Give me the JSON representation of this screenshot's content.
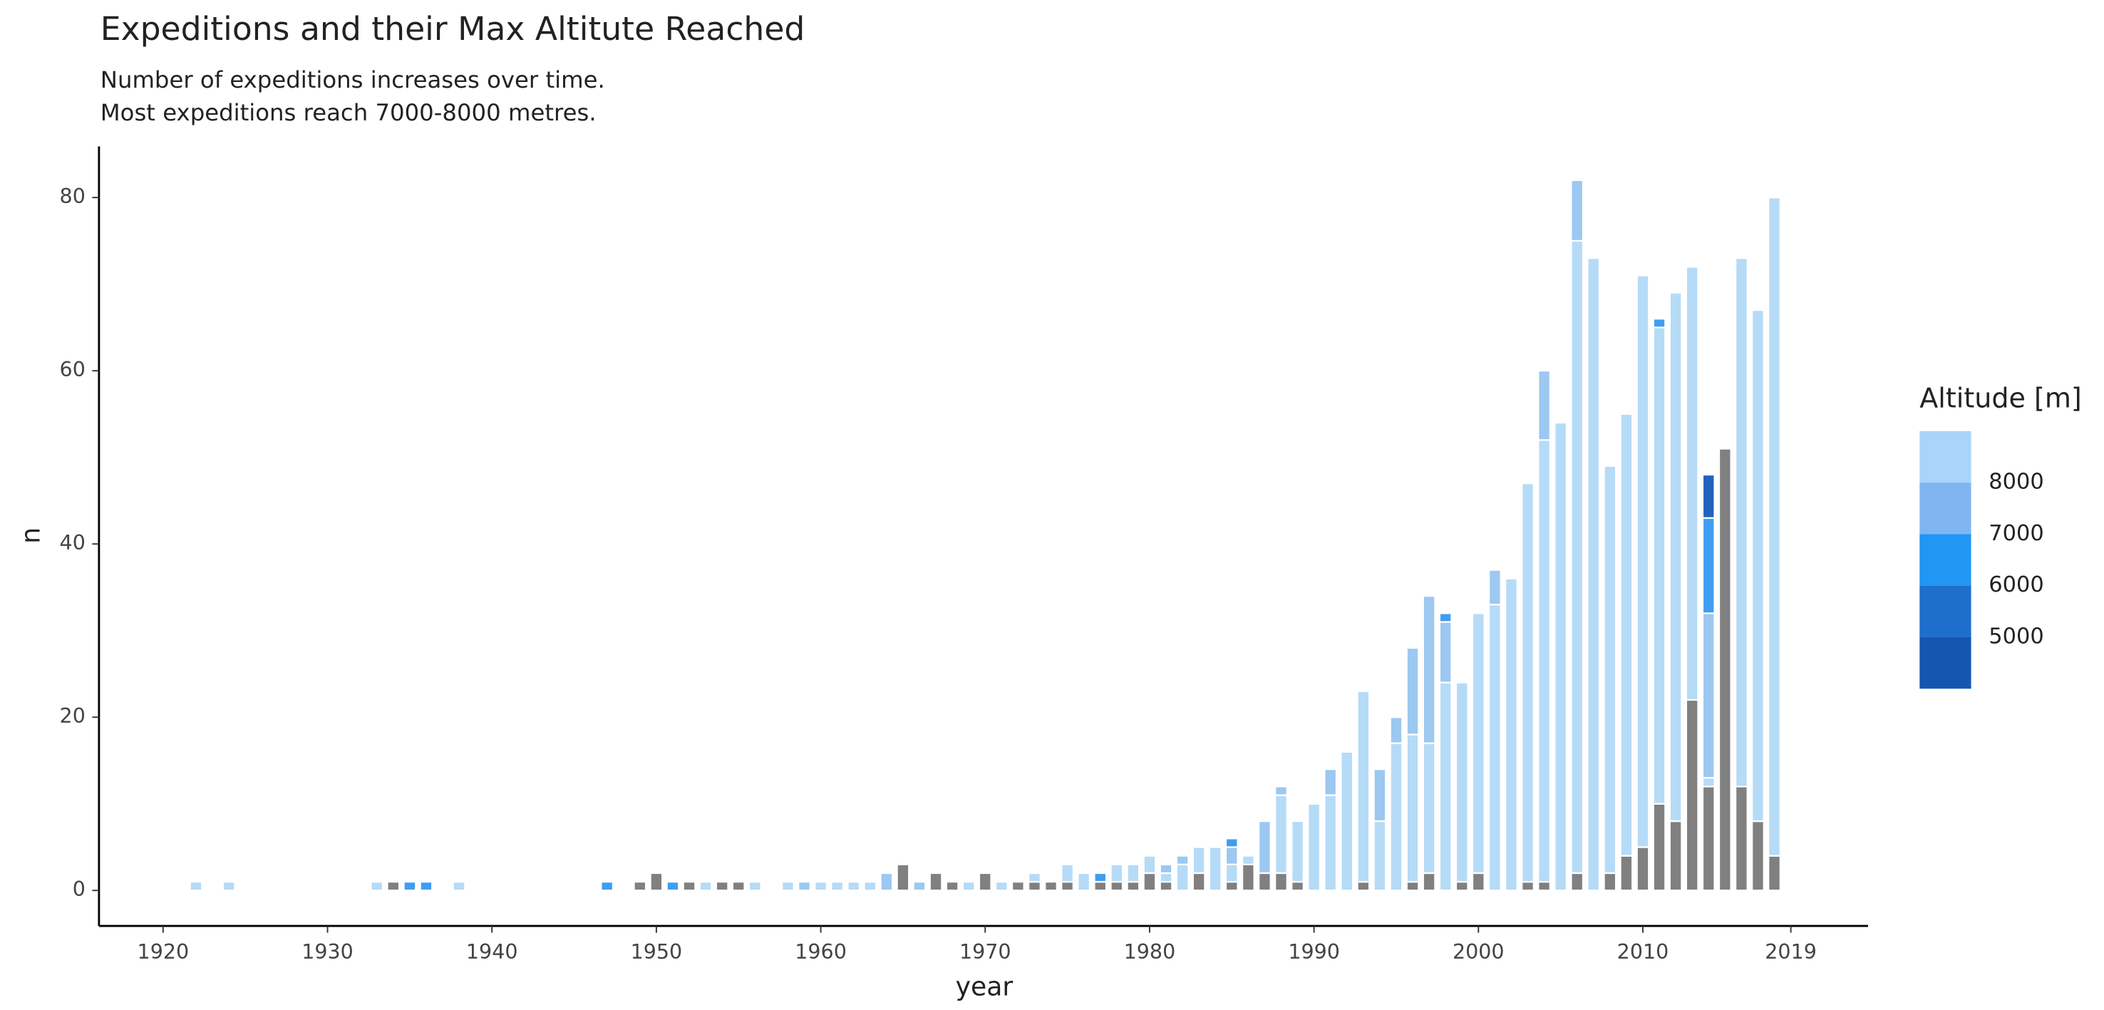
{
  "chart_data": {
    "type": "stacked_bar",
    "title": "Expeditions and their Max Altitute Reached",
    "subtitle": [
      "Number of expeditions increases over time.",
      "Most expeditions reach 7000-8000 metres."
    ],
    "x_label": "year",
    "y_label": "n",
    "x": [
      1922,
      1924,
      1933,
      1934,
      1935,
      1936,
      1938,
      1947,
      1949,
      1950,
      1951,
      1952,
      1953,
      1954,
      1955,
      1956,
      1958,
      1959,
      1960,
      1961,
      1962,
      1963,
      1964,
      1965,
      1966,
      1967,
      1968,
      1969,
      1970,
      1971,
      1972,
      1973,
      1974,
      1975,
      1976,
      1977,
      1978,
      1979,
      1980,
      1981,
      1982,
      1983,
      1984,
      1985,
      1986,
      1987,
      1988,
      1989,
      1990,
      1991,
      1992,
      1993,
      1994,
      1995,
      1996,
      1997,
      1998,
      1999,
      2000,
      2001,
      2002,
      2003,
      2004,
      2005,
      2006,
      2007,
      2008,
      2009,
      2010,
      2011,
      2012,
      2013,
      2014,
      2015,
      2016,
      2017,
      2018
    ],
    "series": [
      {
        "color": "#808080",
        "values": [
          0,
          0,
          0,
          1,
          0,
          0,
          0,
          0,
          1,
          2,
          0,
          1,
          0,
          1,
          1,
          0,
          0,
          0,
          0,
          0,
          0,
          0,
          0,
          3,
          0,
          2,
          1,
          0,
          2,
          0,
          1,
          1,
          1,
          1,
          0,
          1,
          1,
          1,
          2,
          1,
          0,
          2,
          0,
          1,
          3,
          2,
          2,
          1,
          0,
          0,
          0,
          1,
          0,
          0,
          1,
          2,
          0,
          1,
          2,
          0,
          0,
          1,
          1,
          0,
          2,
          0,
          2,
          4,
          5,
          10,
          8,
          22,
          12,
          51,
          12,
          8,
          4
        ]
      },
      {
        "color": "#b5dbf7",
        "values": [
          1,
          1,
          1,
          0,
          0,
          0,
          1,
          0,
          0,
          0,
          0,
          0,
          1,
          0,
          0,
          1,
          1,
          0,
          1,
          1,
          1,
          1,
          0,
          0,
          0,
          0,
          0,
          1,
          0,
          1,
          0,
          1,
          0,
          2,
          2,
          0,
          2,
          2,
          2,
          1,
          3,
          3,
          5,
          2,
          1,
          0,
          9,
          7,
          10,
          11,
          16,
          22,
          8,
          17,
          17,
          15,
          24,
          23,
          30,
          33,
          36,
          46,
          51,
          54,
          73,
          73,
          47,
          51,
          66,
          55,
          61,
          50,
          1,
          0,
          61,
          59,
          76
        ]
      },
      {
        "color": "#9cc8f1",
        "values": [
          0,
          0,
          0,
          0,
          0,
          0,
          0,
          0,
          0,
          0,
          0,
          0,
          0,
          0,
          0,
          0,
          0,
          1,
          0,
          0,
          0,
          0,
          2,
          0,
          1,
          0,
          0,
          0,
          0,
          0,
          0,
          0,
          0,
          0,
          0,
          0,
          0,
          0,
          0,
          1,
          1,
          0,
          0,
          2,
          0,
          6,
          1,
          0,
          0,
          3,
          0,
          0,
          6,
          3,
          10,
          17,
          7,
          0,
          0,
          4,
          0,
          0,
          8,
          0,
          7,
          0,
          0,
          0,
          0,
          0,
          0,
          0,
          19,
          0,
          0,
          0,
          0
        ]
      },
      {
        "color": "#3f9ef0",
        "values": [
          0,
          0,
          0,
          0,
          1,
          1,
          0,
          1,
          0,
          0,
          1,
          0,
          0,
          0,
          0,
          0,
          0,
          0,
          0,
          0,
          0,
          0,
          0,
          0,
          0,
          0,
          0,
          0,
          0,
          0,
          0,
          0,
          0,
          0,
          0,
          1,
          0,
          0,
          0,
          0,
          0,
          0,
          0,
          1,
          0,
          0,
          0,
          0,
          0,
          0,
          0,
          0,
          0,
          0,
          0,
          0,
          1,
          0,
          0,
          0,
          0,
          0,
          0,
          0,
          0,
          0,
          0,
          0,
          0,
          1,
          0,
          0,
          11,
          0,
          0,
          0,
          0
        ]
      },
      {
        "color": "#1f63bd",
        "values": [
          0,
          0,
          0,
          0,
          0,
          0,
          0,
          0,
          0,
          0,
          0,
          0,
          0,
          0,
          0,
          0,
          0,
          0,
          0,
          0,
          0,
          0,
          0,
          0,
          0,
          0,
          0,
          0,
          0,
          0,
          0,
          0,
          0,
          0,
          0,
          0,
          0,
          0,
          0,
          0,
          0,
          0,
          0,
          0,
          0,
          0,
          0,
          0,
          0,
          0,
          0,
          0,
          0,
          0,
          0,
          0,
          0,
          0,
          0,
          0,
          0,
          0,
          0,
          0,
          0,
          0,
          0,
          0,
          0,
          0,
          0,
          0,
          5,
          0,
          0,
          0,
          0
        ]
      }
    ],
    "xlim": [
      1916.1,
      2023.7
    ],
    "ylim": [
      -4.1,
      85.9
    ],
    "xticks": [
      1920,
      1930,
      1940,
      1950,
      1960,
      1970,
      1980,
      1990,
      2000,
      2010,
      2019
    ],
    "yticks": [
      0,
      20,
      40,
      60,
      80
    ],
    "legend": {
      "title": "Altitude [m]",
      "colors": [
        "#aad4f8",
        "#7fb6f2",
        "#2196f3",
        "#1e6fcc",
        "#1557b0"
      ],
      "breaks": [
        8000,
        7000,
        6000,
        5000
      ]
    }
  }
}
